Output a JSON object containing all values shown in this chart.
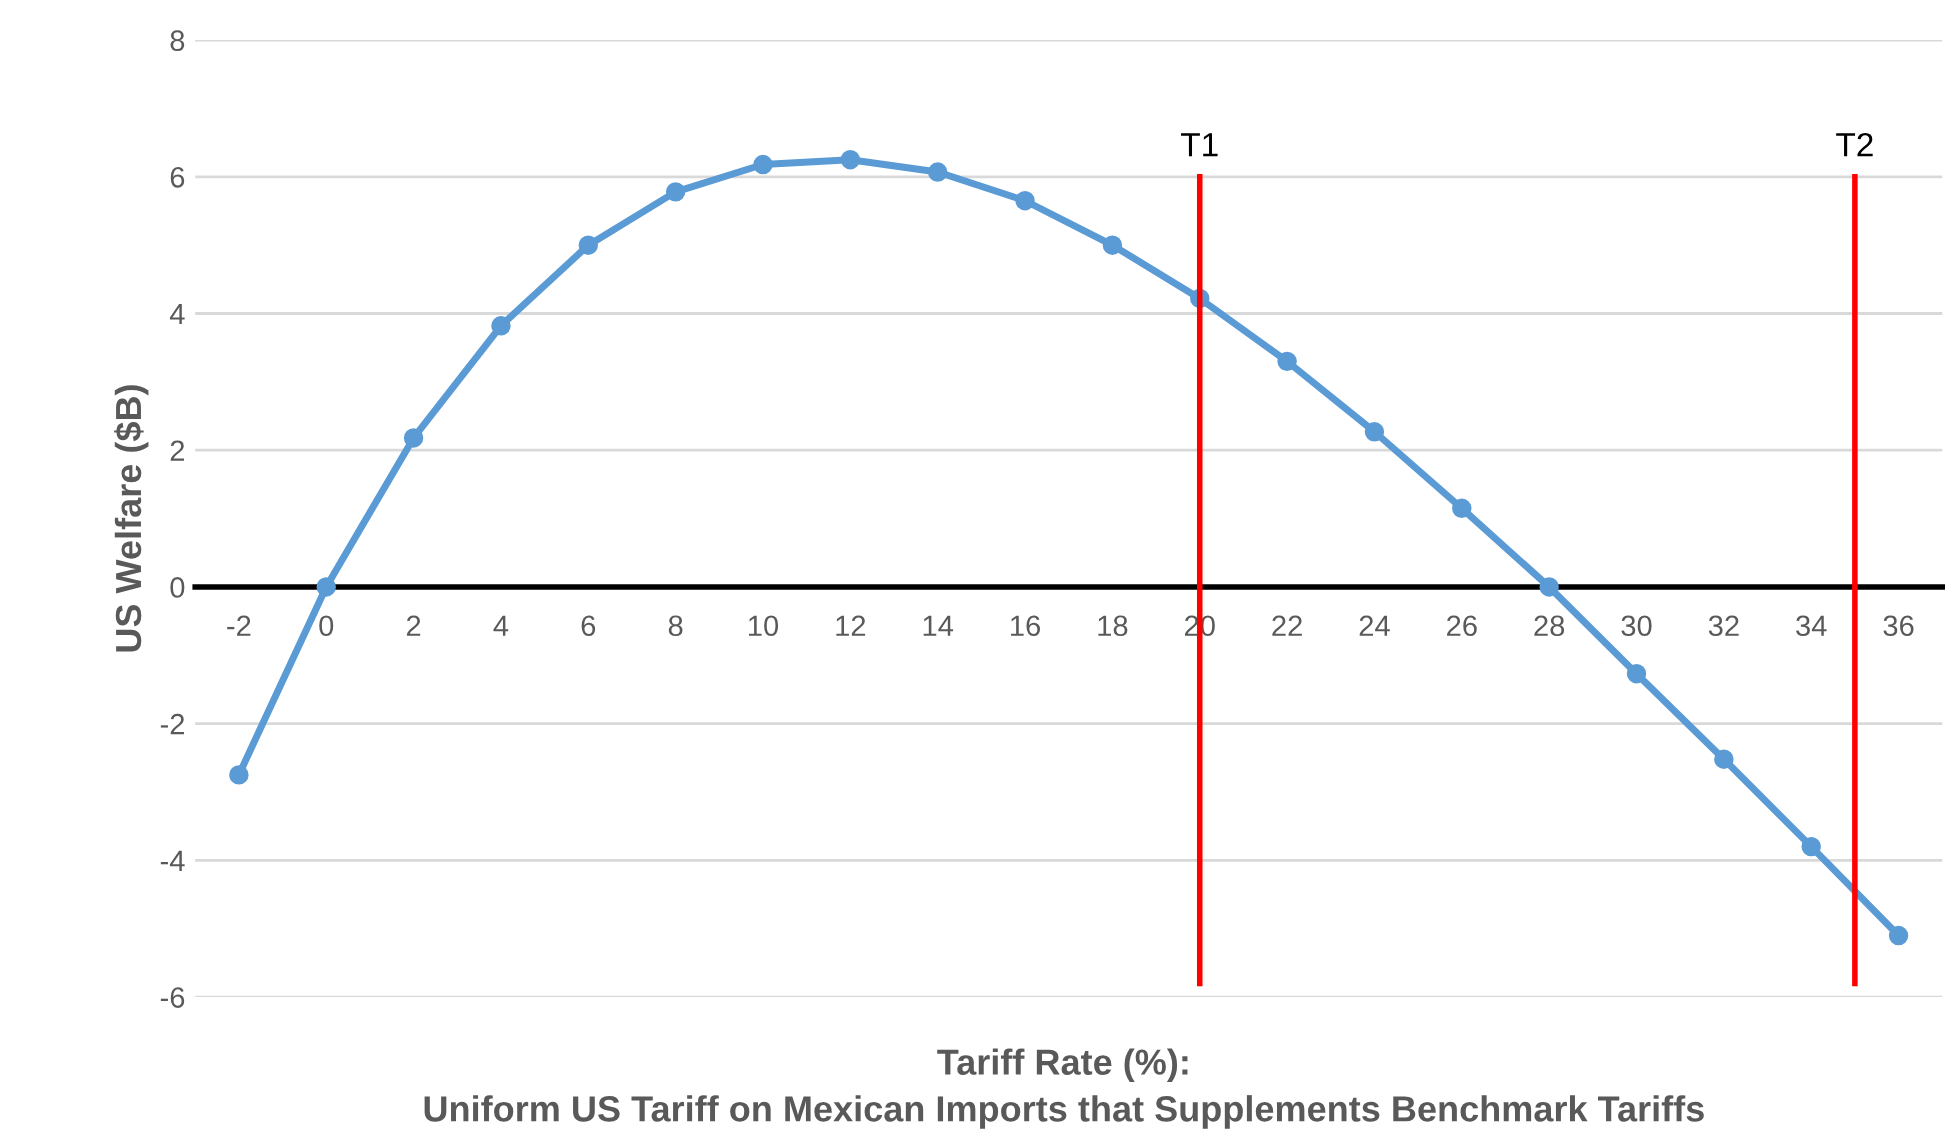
{
  "chart_data": {
    "type": "line",
    "xlabel": "Tariff Rate (%):\nUniform US Tariff on Mexican Imports that Supplements Benchmark Tariffs",
    "ylabel": "US Welfare ($B)",
    "x": [
      -2,
      0,
      2,
      4,
      6,
      8,
      10,
      12,
      14,
      16,
      18,
      20,
      22,
      24,
      26,
      28,
      30,
      32,
      34,
      36
    ],
    "series": [
      {
        "color": "#5b9bd5",
        "values": [
          -2.75,
          0,
          2.18,
          3.82,
          5.0,
          5.78,
          6.18,
          6.25,
          6.07,
          5.65,
          5.0,
          4.22,
          3.3,
          2.27,
          1.15,
          0,
          -1.27,
          -2.52,
          -3.8,
          -5.1
        ]
      }
    ],
    "xlim": [
      -3,
      37
    ],
    "xticks": [
      -2,
      0,
      2,
      4,
      6,
      8,
      10,
      12,
      14,
      16,
      18,
      20,
      22,
      24,
      26,
      28,
      30,
      32,
      34,
      36
    ],
    "ylim": [
      -6,
      8
    ],
    "yticks": [
      -6,
      -4,
      -2,
      0,
      2,
      4,
      6,
      8
    ],
    "ref_lines": [
      {
        "axis": "x",
        "value": 20,
        "label": "T1",
        "color": "#ff0000"
      },
      {
        "axis": "x",
        "value": 35,
        "label": "T2",
        "color": "#ff0000"
      }
    ],
    "grid": "y",
    "marker": "circle",
    "line_style": "solid",
    "legend": false
  }
}
